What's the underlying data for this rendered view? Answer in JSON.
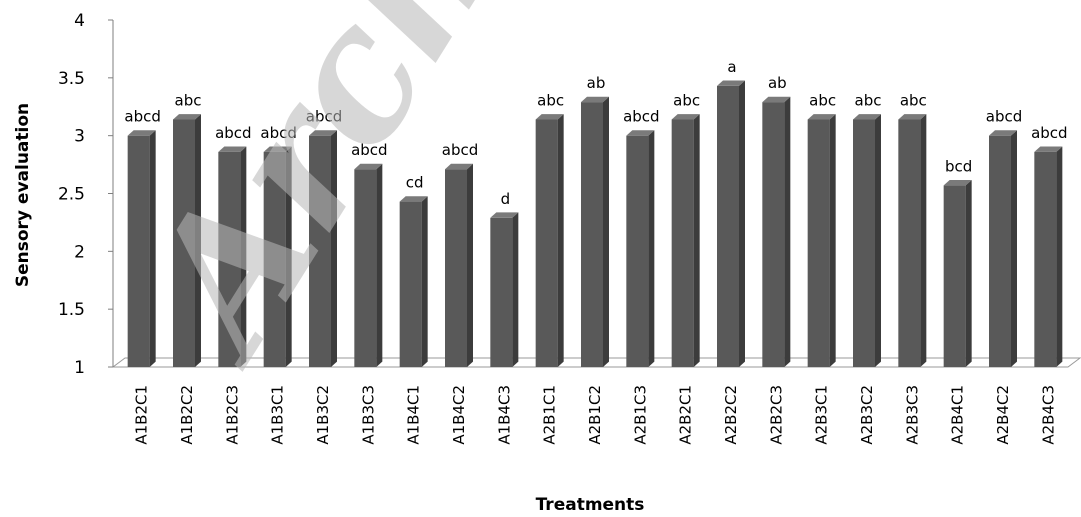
{
  "chart_data": {
    "type": "bar",
    "title": "",
    "xlabel": "Treatments",
    "ylabel": "Sensory evaluation",
    "ylim": [
      1,
      4
    ],
    "yticks": [
      "1",
      "1.5",
      "2",
      "2.5",
      "3",
      "3.5",
      "4"
    ],
    "grid": false,
    "style": "3d-column",
    "bar_color": "#595959",
    "watermark": "Archive",
    "categories": [
      "A1B2C1",
      "A1B2C2",
      "A1B2C3",
      "A1B3C1",
      "A1B3C2",
      "A1B3C3",
      "A1B4C1",
      "A1B4C2",
      "A1B4C3",
      "A2B1C1",
      "A2B1C2",
      "A2B1C3",
      "A2B2C1",
      "A2B2C2",
      "A2B2C3",
      "A2B3C1",
      "A2B3C2",
      "A2B3C3",
      "A2B4C1",
      "A2B4C2",
      "A2B4C3"
    ],
    "values": [
      3.0,
      3.14,
      2.86,
      2.86,
      3.0,
      2.71,
      2.43,
      2.71,
      2.29,
      3.14,
      3.29,
      3.0,
      3.14,
      3.43,
      3.29,
      3.14,
      3.14,
      3.14,
      2.57,
      3.0,
      2.86
    ],
    "labels": [
      "abcd",
      "abc",
      "abcd",
      "abcd",
      "abcd",
      "abcd",
      "cd",
      "abcd",
      "d",
      "abc",
      "ab",
      "abcd",
      "abc",
      "a",
      "ab",
      "abc",
      "abc",
      "abc",
      "bcd",
      "abcd",
      "abcd"
    ]
  }
}
